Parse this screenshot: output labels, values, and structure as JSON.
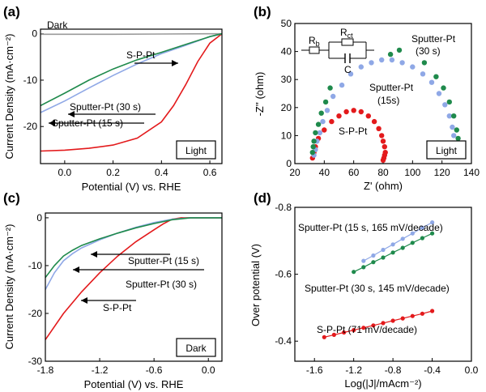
{
  "figure": {
    "background": "#ffffff"
  },
  "colors": {
    "s_p_pt": "#e31a1c",
    "sputter_15": "#8fa8e6",
    "sputter_30": "#1f8a4c",
    "dark": "#9a9a9a",
    "axis": "#000000"
  },
  "chart_data": [
    {
      "panel": "(a)",
      "type": "line",
      "xlabel": "Potential (V) vs. RHE",
      "ylabel": "Current Density (mA·cm⁻²)",
      "xlim": [
        -0.1,
        0.65
      ],
      "ylim": [
        -28,
        1
      ],
      "xticks": [
        0.0,
        0.2,
        0.4,
        0.6
      ],
      "xtick_labels": [
        "0.0",
        "0.2",
        "0.4",
        "0.6"
      ],
      "yticks": [
        0,
        -10,
        -20
      ],
      "ytick_labels": [
        "0",
        "-10",
        "-20"
      ],
      "box_label": "Light",
      "series": [
        {
          "name": "Dark",
          "color": "#9a9a9a",
          "x": [
            -0.1,
            0.0,
            0.2,
            0.4,
            0.6,
            0.65
          ],
          "y": [
            -0.1,
            -0.1,
            -0.1,
            -0.05,
            0.0,
            0.0
          ]
        },
        {
          "name": "S-P-Pt",
          "color": "#e31a1c",
          "x": [
            -0.1,
            0.0,
            0.1,
            0.2,
            0.3,
            0.4,
            0.45,
            0.5,
            0.55,
            0.6,
            0.65
          ],
          "y": [
            -25.3,
            -25.1,
            -24.7,
            -24.0,
            -22.5,
            -19.0,
            -15.5,
            -11.0,
            -6.0,
            -2.0,
            0.0
          ]
        },
        {
          "name": "Sputter-Pt (15 s)",
          "color": "#8fa8e6",
          "x": [
            -0.1,
            0.0,
            0.1,
            0.2,
            0.3,
            0.4,
            0.5,
            0.6,
            0.65
          ],
          "y": [
            -17.0,
            -14.5,
            -11.7,
            -9.0,
            -6.5,
            -4.3,
            -2.5,
            -0.6,
            0.0
          ]
        },
        {
          "name": "Sputter-Pt (30 s)",
          "color": "#1f8a4c",
          "x": [
            -0.1,
            0.0,
            0.1,
            0.2,
            0.3,
            0.4,
            0.5,
            0.6,
            0.65
          ],
          "y": [
            -15.5,
            -12.8,
            -10.0,
            -7.6,
            -5.6,
            -4.0,
            -2.3,
            -0.6,
            0.0
          ]
        }
      ],
      "annotations": [
        "Dark",
        "S-P-Pt",
        "Sputter-Pt (30 s)",
        "Sputter-Pt (15 s)"
      ]
    },
    {
      "panel": "(b)",
      "type": "scatter",
      "xlabel": "Z' (ohm)",
      "ylabel": "-Z'' (ohm)",
      "xlim": [
        20,
        140
      ],
      "ylim": [
        0,
        50
      ],
      "xticks": [
        20,
        40,
        60,
        80,
        100,
        120,
        140
      ],
      "xtick_labels": [
        "20",
        "40",
        "60",
        "80",
        "100",
        "120",
        "140"
      ],
      "yticks": [
        0,
        10,
        20,
        30,
        40,
        50
      ],
      "ytick_labels": [
        "0",
        "10",
        "20",
        "30",
        "40",
        "50"
      ],
      "box_label": "Light",
      "circuit_labels": {
        "rb": "R",
        "rb_sub": "b",
        "rct": "R",
        "rct_sub": "ct",
        "c": "C"
      },
      "series": [
        {
          "name": "S-P-Pt",
          "color": "#e31a1c",
          "x": [
            32,
            33,
            34,
            36,
            40,
            45,
            50,
            55,
            60,
            65,
            70,
            74,
            77,
            79,
            80,
            81,
            81.5,
            81,
            80.5,
            80
          ],
          "y": [
            2,
            4,
            6,
            9,
            12,
            15,
            17,
            18.5,
            19,
            18.5,
            17,
            15,
            12.5,
            10,
            8,
            6,
            4,
            3,
            2,
            1.2
          ]
        },
        {
          "name": "Sputter-Pt (15s)",
          "color": "#8fa8e6",
          "x": [
            33,
            34,
            35,
            37,
            39,
            42,
            46,
            52,
            58,
            65,
            72,
            79,
            86,
            93,
            100,
            107,
            113,
            118,
            122,
            125,
            127,
            128,
            129,
            129
          ],
          "y": [
            3,
            5,
            8,
            11,
            15,
            19,
            24,
            28,
            32,
            34.5,
            36,
            37,
            37,
            36,
            34.5,
            32,
            29,
            25,
            21,
            17,
            13,
            10,
            7,
            5
          ]
        },
        {
          "name": "Sputter-Pt (30 s)",
          "color": "#1f8a4c",
          "x": [
            32,
            32.5,
            33,
            34,
            36,
            38,
            41,
            44,
            85,
            91,
            108,
            116,
            121,
            125,
            128,
            130,
            131,
            131
          ],
          "y": [
            4,
            6,
            8,
            11,
            14,
            18,
            22,
            27,
            39,
            40.5,
            36,
            31,
            27,
            22,
            17,
            12,
            9,
            6
          ]
        }
      ],
      "annotations": [
        "Sputter-Pt (30 s)",
        "Sputter-Pt (15s)",
        "S-P-Pt"
      ]
    },
    {
      "panel": "(c)",
      "type": "line",
      "xlabel": "Potential (V) vs. RHE",
      "ylabel": "Current Density (mA·cm⁻²)",
      "xlim": [
        -1.8,
        0.15
      ],
      "ylim": [
        -30,
        1
      ],
      "xticks": [
        -1.8,
        -1.2,
        -0.6,
        0.0
      ],
      "xtick_labels": [
        "-1.8",
        "-1.2",
        "-0.6",
        "0.0"
      ],
      "yticks": [
        0,
        -10,
        -20,
        -30
      ],
      "ytick_labels": [
        "0",
        "-10",
        "-20",
        "-30"
      ],
      "box_label": "Dark",
      "series": [
        {
          "name": "S-P-Pt",
          "color": "#e31a1c",
          "x": [
            -1.8,
            -1.6,
            -1.4,
            -1.2,
            -1.0,
            -0.8,
            -0.6,
            -0.5,
            -0.4,
            -0.3,
            0.15
          ],
          "y": [
            -25.5,
            -20.0,
            -15.5,
            -11.5,
            -8.0,
            -5.0,
            -2.5,
            -1.3,
            -0.3,
            0.0,
            0.0
          ]
        },
        {
          "name": "Sputter-Pt (15 s)",
          "color": "#8fa8e6",
          "x": [
            -1.8,
            -1.7,
            -1.6,
            -1.5,
            -1.4,
            -1.2,
            -1.0,
            -0.8,
            -0.6,
            -0.4,
            -0.2,
            0.15
          ],
          "y": [
            -15.0,
            -11.5,
            -9.0,
            -7.5,
            -6.3,
            -4.6,
            -3.2,
            -2.0,
            -1.0,
            -0.3,
            0.0,
            0.0
          ]
        },
        {
          "name": "Sputter-Pt (30 s)",
          "color": "#1f8a4c",
          "x": [
            -1.8,
            -1.7,
            -1.6,
            -1.5,
            -1.4,
            -1.2,
            -1.0,
            -0.8,
            -0.6,
            -0.4,
            -0.2,
            0.15
          ],
          "y": [
            -12.5,
            -10.0,
            -8.0,
            -6.8,
            -5.8,
            -4.4,
            -3.2,
            -2.1,
            -1.2,
            -0.4,
            0.0,
            0.0
          ]
        }
      ],
      "annotations": [
        "Sputter-Pt (15 s)",
        "Sputter-Pt (30 s)",
        "S-P-Pt"
      ]
    },
    {
      "panel": "(d)",
      "type": "scatter",
      "xlabel": "Log(|J|/mAcm⁻²)",
      "ylabel": "Over potential (V)",
      "xlim": [
        -1.8,
        0.0
      ],
      "ylim": [
        -0.34,
        -0.8
      ],
      "xticks": [
        -1.6,
        -1.2,
        -0.8,
        -0.4,
        0.0
      ],
      "xtick_labels": [
        "-1.6",
        "-1.2",
        "-0.8",
        "-0.4",
        "0.0"
      ],
      "yticks": [
        -0.4,
        -0.6,
        -0.8
      ],
      "ytick_labels": [
        "-0.4",
        "-0.6",
        "-0.8"
      ],
      "series": [
        {
          "name": "S-P-Pt (71 mV/decade)",
          "color": "#e31a1c",
          "x": [
            -1.5,
            -1.4,
            -1.3,
            -1.2,
            -1.1,
            -1.0,
            -0.9,
            -0.8,
            -0.7,
            -0.6,
            -0.5,
            -0.4
          ],
          "y": [
            -0.412,
            -0.419,
            -0.426,
            -0.433,
            -0.44,
            -0.447,
            -0.454,
            -0.461,
            -0.468,
            -0.475,
            -0.482,
            -0.49
          ]
        },
        {
          "name": "Sputter-Pt (15 s, 165 mV/decade)",
          "color": "#8fa8e6",
          "x": [
            -1.1,
            -1.0,
            -0.9,
            -0.8,
            -0.7,
            -0.6,
            -0.5,
            -0.4
          ],
          "y": [
            -0.64,
            -0.656,
            -0.673,
            -0.689,
            -0.706,
            -0.722,
            -0.739,
            -0.755
          ]
        },
        {
          "name": "Sputter-Pt (30 s, 145 mV/decade)",
          "color": "#1f8a4c",
          "x": [
            -1.2,
            -1.1,
            -1.0,
            -0.9,
            -0.8,
            -0.7,
            -0.6,
            -0.5,
            -0.4
          ],
          "y": [
            -0.607,
            -0.621,
            -0.636,
            -0.65,
            -0.665,
            -0.679,
            -0.694,
            -0.708,
            -0.722
          ]
        }
      ],
      "annotations": [
        "Sputter-Pt (15 s, 165 mV/decade)",
        "Sputter-Pt (30 s, 145 mV/decade)",
        "S-P-Pt (71 mV/decade)"
      ]
    }
  ]
}
